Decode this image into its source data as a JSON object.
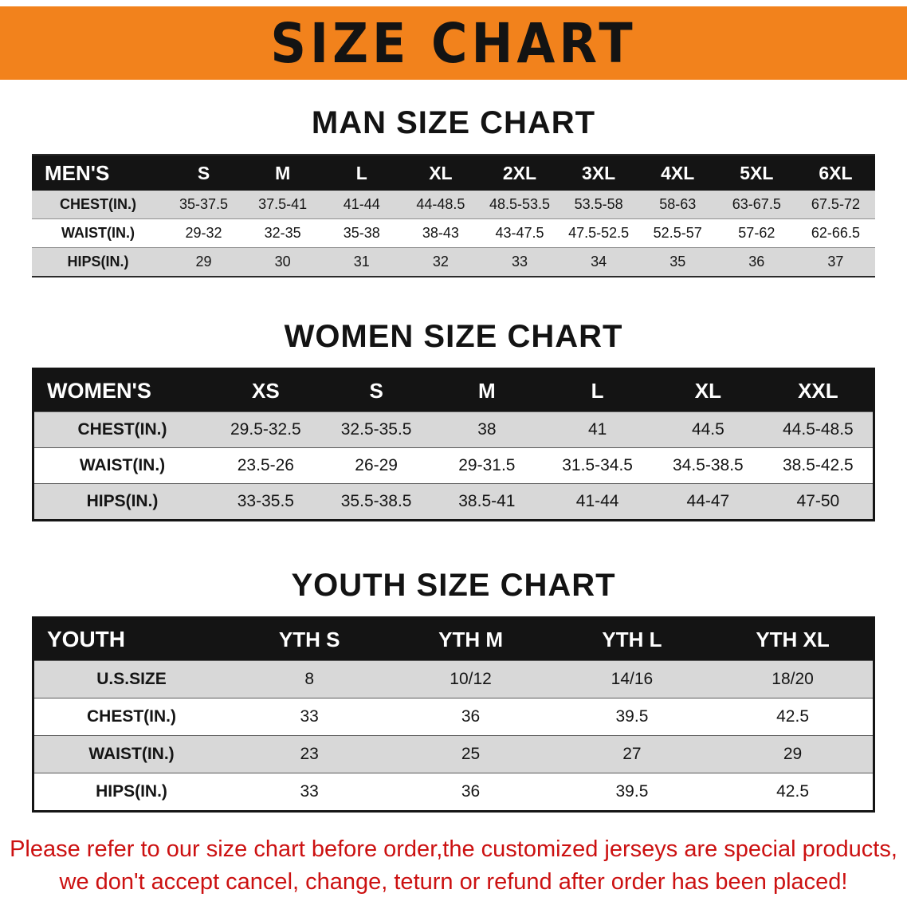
{
  "banner": {
    "title": "SIZE CHART"
  },
  "colors": {
    "banner_orange": "#f2821c",
    "table_header_bg": "#141414",
    "row_shade": "#d8d8d8",
    "disclaimer_red": "#cc1111"
  },
  "sections": [
    {
      "id": "mens",
      "heading": "MAN SIZE CHART",
      "table": {
        "header_label": "MEN'S",
        "columns": [
          "S",
          "M",
          "L",
          "XL",
          "2XL",
          "3XL",
          "4XL",
          "5XL",
          "6XL"
        ],
        "rows": [
          {
            "label": "CHEST(IN.)",
            "values": [
              "35-37.5",
              "37.5-41",
              "41-44",
              "44-48.5",
              "48.5-53.5",
              "53.5-58",
              "58-63",
              "63-67.5",
              "67.5-72"
            ]
          },
          {
            "label": "WAIST(IN.)",
            "values": [
              "29-32",
              "32-35",
              "35-38",
              "38-43",
              "43-47.5",
              "47.5-52.5",
              "52.5-57",
              "57-62",
              "62-66.5"
            ]
          },
          {
            "label": "HIPS(IN.)",
            "values": [
              "29",
              "30",
              "31",
              "32",
              "33",
              "34",
              "35",
              "36",
              "37"
            ]
          }
        ]
      }
    },
    {
      "id": "womens",
      "heading": "WOMEN SIZE CHART",
      "table": {
        "header_label": "WOMEN'S",
        "columns": [
          "XS",
          "S",
          "M",
          "L",
          "XL",
          "XXL"
        ],
        "rows": [
          {
            "label": "CHEST(IN.)",
            "values": [
              "29.5-32.5",
              "32.5-35.5",
              "38",
              "41",
              "44.5",
              "44.5-48.5"
            ]
          },
          {
            "label": "WAIST(IN.)",
            "values": [
              "23.5-26",
              "26-29",
              "29-31.5",
              "31.5-34.5",
              "34.5-38.5",
              "38.5-42.5"
            ]
          },
          {
            "label": "HIPS(IN.)",
            "values": [
              "33-35.5",
              "35.5-38.5",
              "38.5-41",
              "41-44",
              "44-47",
              "47-50"
            ]
          }
        ]
      }
    },
    {
      "id": "youth",
      "heading": "YOUTH SIZE CHART",
      "table": {
        "header_label": "YOUTH",
        "columns": [
          "YTH S",
          "YTH M",
          "YTH L",
          "YTH XL"
        ],
        "rows": [
          {
            "label": "U.S.SIZE",
            "values": [
              "8",
              "10/12",
              "14/16",
              "18/20"
            ]
          },
          {
            "label": "CHEST(IN.)",
            "values": [
              "33",
              "36",
              "39.5",
              "42.5"
            ]
          },
          {
            "label": "WAIST(IN.)",
            "values": [
              "23",
              "25",
              "27",
              "29"
            ]
          },
          {
            "label": "HIPS(IN.)",
            "values": [
              "33",
              "36",
              "39.5",
              "42.5"
            ]
          }
        ]
      }
    }
  ],
  "disclaimer": {
    "line1": "Please refer to our size chart before order,the customized jerseys are special products,",
    "line2": "we don't accept cancel, change, teturn or refund after order has been placed!"
  }
}
